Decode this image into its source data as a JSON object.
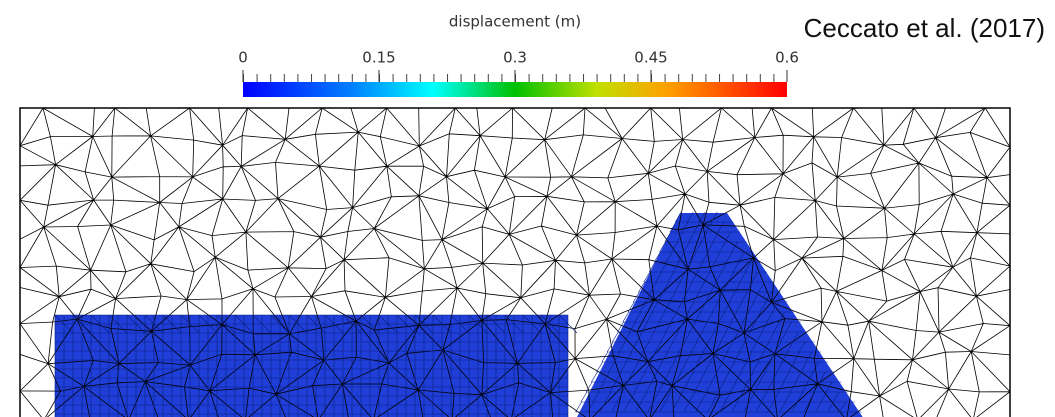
{
  "colorbar": {
    "title": "displacement (m)",
    "range": [
      0,
      0.6
    ],
    "ticks": [
      0,
      0.15,
      0.3,
      0.45,
      0.6
    ]
  },
  "citation": "Ceccato et al. (2017)"
}
